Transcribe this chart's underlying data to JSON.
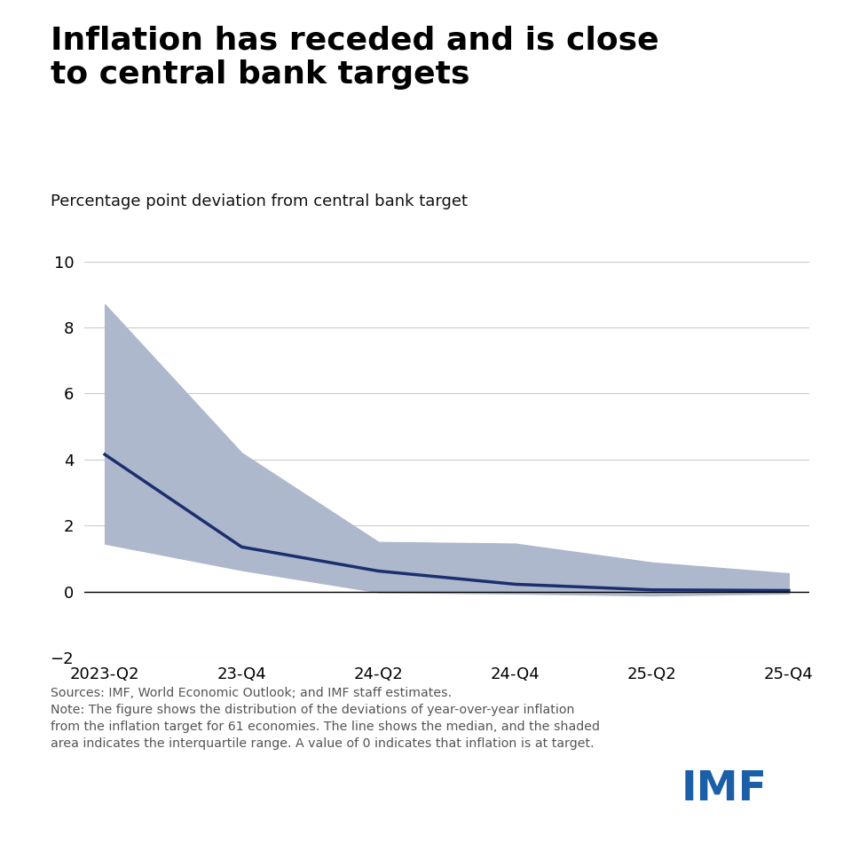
{
  "title": "Inflation has receded and is close\nto central bank targets",
  "subtitle": "Percentage point deviation from central bank target",
  "x_labels": [
    "2023-Q2",
    "23-Q4",
    "24-Q2",
    "24-Q4",
    "25-Q2",
    "25-Q4"
  ],
  "x_values": [
    0,
    1,
    2,
    3,
    4,
    5
  ],
  "median": [
    4.15,
    1.35,
    0.62,
    0.22,
    0.05,
    0.03
  ],
  "q75": [
    8.7,
    4.2,
    1.5,
    1.45,
    0.88,
    0.55
  ],
  "q25": [
    1.45,
    0.65,
    -0.02,
    -0.06,
    -0.12,
    -0.06
  ],
  "ylim": [
    -2,
    10
  ],
  "yticks": [
    -2,
    0,
    2,
    4,
    6,
    8,
    10
  ],
  "line_color": "#1b2f6e",
  "shade_color": "#adb8cc",
  "zero_line_color": "#000000",
  "background_color": "#ffffff",
  "title_fontsize": 26,
  "subtitle_fontsize": 13,
  "tick_fontsize": 13,
  "note_text": "Sources: IMF, World Economic Outlook; and IMF staff estimates.\nNote: The figure shows the distribution of the deviations of year-over-year inflation\nfrom the inflation target for 61 economies. The line shows the median, and the shaded\narea indicates the interquartile range. A value of 0 indicates that inflation is at target.",
  "imf_text": "IMF",
  "imf_color": "#1a5fa8"
}
